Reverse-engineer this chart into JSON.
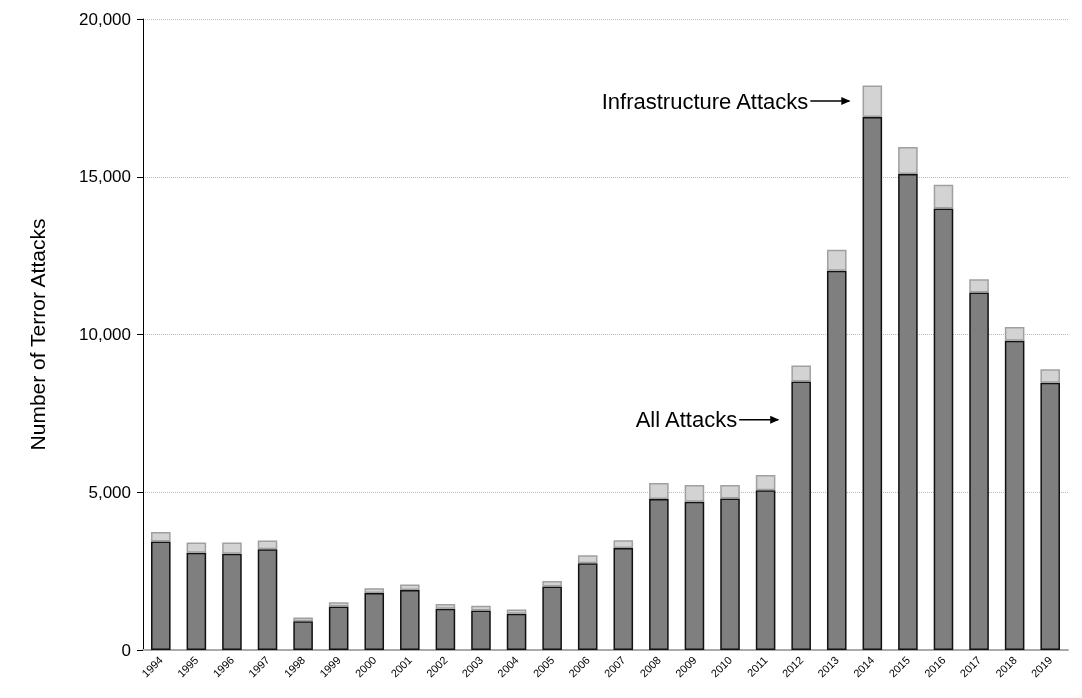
{
  "chart_data": {
    "type": "bar",
    "stacked": true,
    "ylabel": "Number of Terror Attacks",
    "categories": [
      "1994",
      "1995",
      "1996",
      "1997",
      "1998",
      "1999",
      "2000",
      "2001",
      "2002",
      "2003",
      "2004",
      "2005",
      "2006",
      "2007",
      "2008",
      "2009",
      "2010",
      "2011",
      "2012",
      "2013",
      "2014",
      "2015",
      "2016",
      "2017",
      "2018",
      "2019"
    ],
    "series": [
      {
        "color": "#7f7f7f",
        "values": [
          3440,
          3080,
          3050,
          3190,
          910,
          1380,
          1810,
          1900,
          1310,
          1250,
          1150,
          2010,
          2750,
          3230,
          4790,
          4700,
          4800,
          5060,
          8510,
          12020,
          16890,
          15090,
          13990,
          11330,
          9800,
          8470
        ]
      },
      {
        "color": "#d3d3d3",
        "values": [
          300,
          330,
          360,
          280,
          120,
          130,
          150,
          180,
          150,
          150,
          130,
          180,
          250,
          250,
          500,
          530,
          430,
          490,
          510,
          670,
          1000,
          850,
          760,
          420,
          440,
          430
        ]
      }
    ],
    "ylim": [
      0,
      20000
    ],
    "yticks": [
      {
        "value": 0,
        "label": "0"
      },
      {
        "value": 5000,
        "label": "5,000"
      },
      {
        "value": 10000,
        "label": "10,000"
      },
      {
        "value": 15000,
        "label": "15,000"
      },
      {
        "value": 20000,
        "label": "20,000"
      }
    ],
    "grid": "y",
    "annotations": [
      {
        "text": "Infrastructure Attacks",
        "x": "2014",
        "y": 17400
      },
      {
        "text": "All Attacks",
        "x": "2012",
        "y": 7300
      }
    ]
  }
}
